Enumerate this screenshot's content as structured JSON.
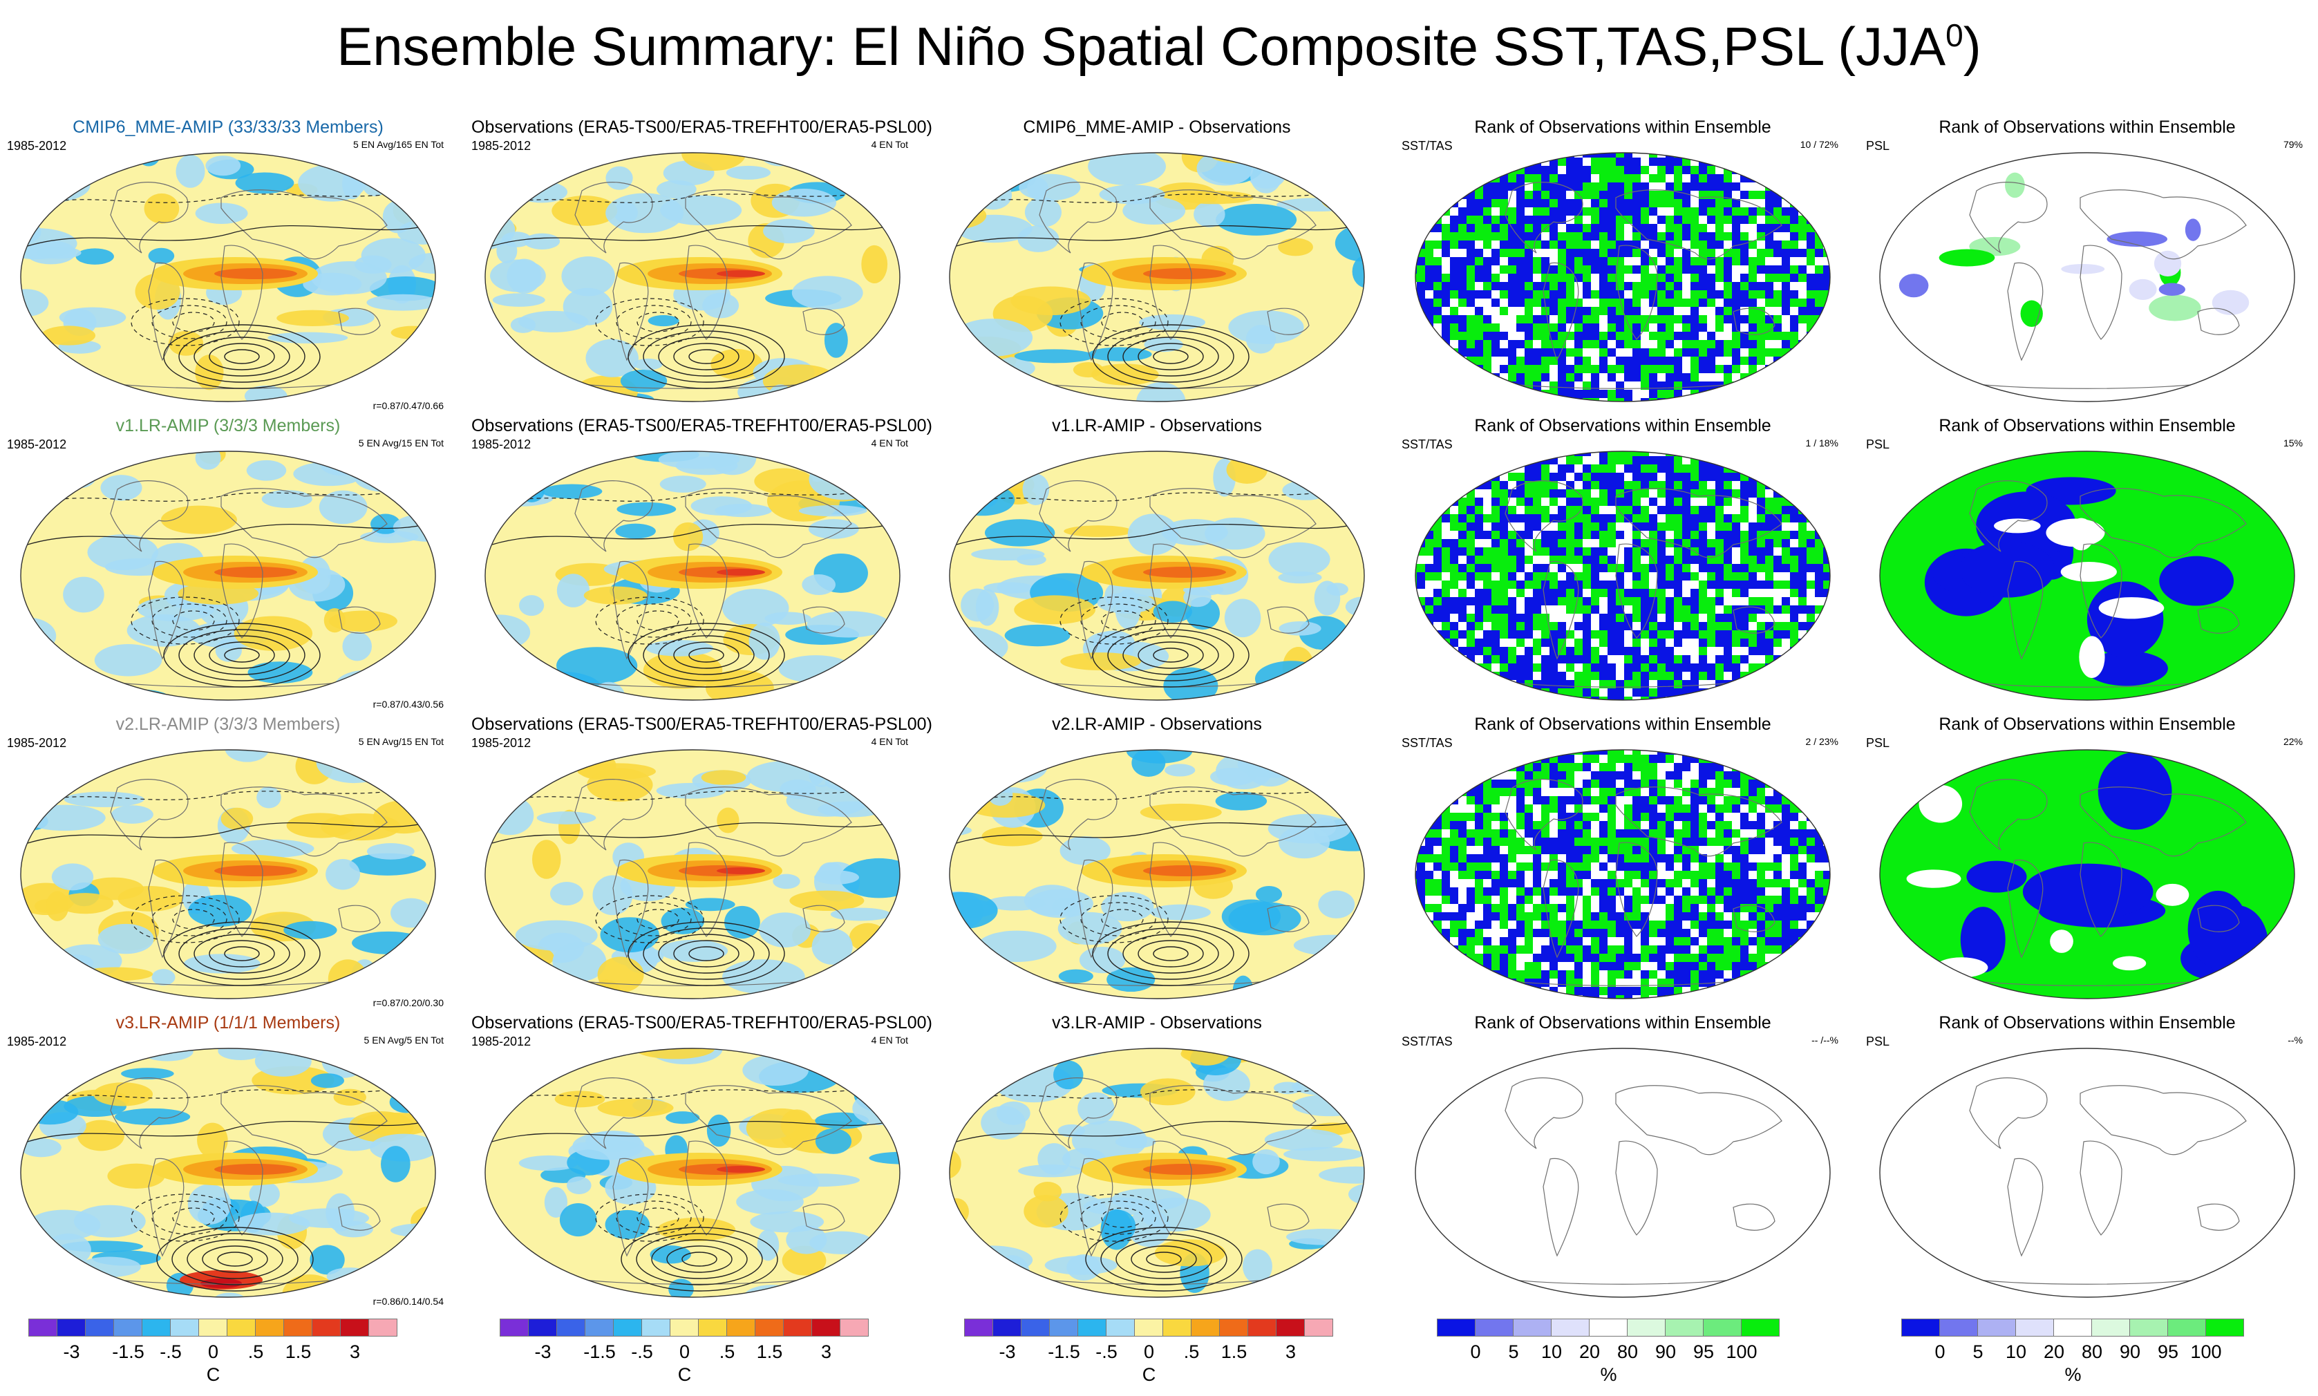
{
  "title": {
    "main": "Ensemble Summary: El Niño Spatial Composite SST,TAS,PSL (JJA",
    "sup": "0",
    "end": ")"
  },
  "colors": {
    "temp_scale": [
      "#7a2fd8",
      "#1d1ed8",
      "#3a63e8",
      "#5c96ea",
      "#2cb5ee",
      "#a6dcf6",
      "#fbf3a4",
      "#f9d83f",
      "#f6a51b",
      "#ef6b19",
      "#e33a1e",
      "#c8101a",
      "#f6a8b4"
    ],
    "rank_scale": [
      "#0a14e4",
      "#7276ee",
      "#adb1f3",
      "#dfe1fb",
      "#ffffff",
      "#dcf9df",
      "#a7f2b0",
      "#6ceb7d",
      "#08ed0d"
    ],
    "contour": "#222222",
    "coast": "#6f6f6f"
  },
  "rows": [
    {
      "model": {
        "title": "CMIP6_MME-AMIP (33/33/33 Members)",
        "title_color": "#1868a8",
        "period": "1985-2012",
        "ens": "5 EN Avg/165 EN Tot",
        "corr": "r=0.87/0.47/0.66"
      },
      "obs": {
        "title": "Observations (ERA5-TS00/ERA5-TREFHT00/ERA5-PSL00)",
        "period": "1985-2012",
        "ens": "4 EN Tot"
      },
      "diff": {
        "title": "CMIP6_MME-AMIP - Observations"
      },
      "rank_sst": {
        "title": "Rank of Observations within Ensemble",
        "var": "SST/TAS",
        "pct": "10 /  72%",
        "fill": "mixed"
      },
      "rank_psl": {
        "title": "Rank of Observations within Ensemble",
        "var": "PSL",
        "pct": "79%",
        "fill": "sparse"
      }
    },
    {
      "model": {
        "title": "v1.LR-AMIP (3/3/3 Members)",
        "title_color": "#5a9a54",
        "period": "1985-2012",
        "ens": "5 EN Avg/15 EN Tot",
        "corr": "r=0.87/0.43/0.56"
      },
      "obs": {
        "title": "Observations (ERA5-TS00/ERA5-TREFHT00/ERA5-PSL00)",
        "period": "1985-2012",
        "ens": "4 EN Tot"
      },
      "diff": {
        "title": "v1.LR-AMIP - Observations"
      },
      "rank_sst": {
        "title": "Rank of Observations within Ensemble",
        "var": "SST/TAS",
        "pct": "1 /  18%",
        "fill": "mixed"
      },
      "rank_psl": {
        "title": "Rank of Observations within Ensemble",
        "var": "PSL",
        "pct": "15%",
        "fill": "blobs"
      }
    },
    {
      "model": {
        "title": "v2.LR-AMIP (3/3/3 Members)",
        "title_color": "#8a8a8a",
        "period": "1985-2012",
        "ens": "5 EN Avg/15 EN Tot",
        "corr": "r=0.87/0.20/0.30"
      },
      "obs": {
        "title": "Observations (ERA5-TS00/ERA5-TREFHT00/ERA5-PSL00)",
        "period": "1985-2012",
        "ens": "4 EN Tot"
      },
      "diff": {
        "title": "v2.LR-AMIP - Observations"
      },
      "rank_sst": {
        "title": "Rank of Observations within Ensemble",
        "var": "SST/TAS",
        "pct": "2 /  23%",
        "fill": "mixed"
      },
      "rank_psl": {
        "title": "Rank of Observations within Ensemble",
        "var": "PSL",
        "pct": "22%",
        "fill": "blobs"
      }
    },
    {
      "model": {
        "title": "v3.LR-AMIP (1/1/1 Members)",
        "title_color": "#a83a12",
        "period": "1985-2012",
        "ens": "5 EN Avg/5 EN Tot",
        "corr": "r=0.86/0.14/0.54"
      },
      "obs": {
        "title": "Observations (ERA5-TS00/ERA5-TREFHT00/ERA5-PSL00)",
        "period": "1985-2012",
        "ens": "4 EN Tot"
      },
      "diff": {
        "title": "v3.LR-AMIP - Observations"
      },
      "rank_sst": {
        "title": "Rank of Observations within Ensemble",
        "var": "SST/TAS",
        "pct": "-- /--%",
        "fill": "empty"
      },
      "rank_psl": {
        "title": "Rank of Observations within Ensemble",
        "var": "PSL",
        "pct": "--%",
        "fill": "empty"
      }
    }
  ],
  "colorbars": [
    {
      "kind": "temp",
      "ticks": [
        "-3",
        "-1.5",
        "-.5",
        "0",
        ".5",
        "1.5",
        "3"
      ],
      "unit": "C"
    },
    {
      "kind": "temp",
      "ticks": [
        "-3",
        "-1.5",
        "-.5",
        "0",
        ".5",
        "1.5",
        "3"
      ],
      "unit": "C"
    },
    {
      "kind": "temp",
      "ticks": [
        "-3",
        "-1.5",
        "-.5",
        "0",
        ".5",
        "1.5",
        "3"
      ],
      "unit": "C"
    },
    {
      "kind": "rank",
      "ticks": [
        "0",
        "5",
        "10",
        "20",
        "80",
        "90",
        "95",
        "100"
      ],
      "unit": "%"
    },
    {
      "kind": "rank",
      "ticks": [
        "0",
        "5",
        "10",
        "20",
        "80",
        "90",
        "95",
        "100"
      ],
      "unit": "%"
    }
  ]
}
